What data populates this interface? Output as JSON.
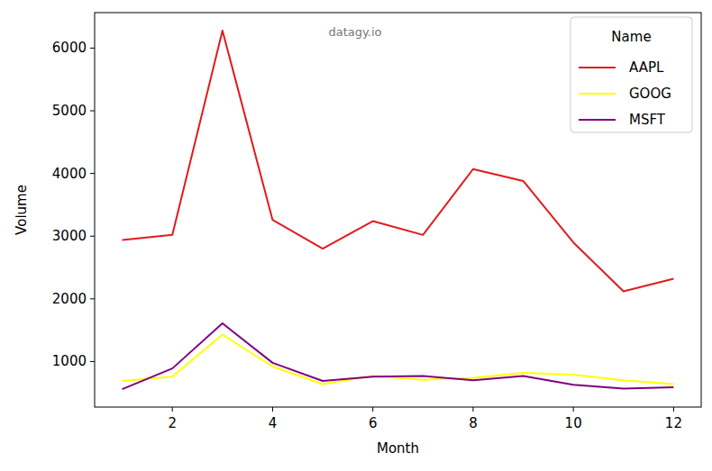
{
  "chart_data": {
    "type": "line",
    "x_label": "Month",
    "y_label": "Volume",
    "annotations": [
      "datagy.io"
    ],
    "legend_title": "Name",
    "legend": "upper right",
    "grid": false,
    "x": [
      1,
      2,
      3,
      4,
      5,
      6,
      7,
      8,
      9,
      10,
      11,
      12
    ],
    "series": [
      {
        "name": "AAPL",
        "color": "#e31a1c",
        "values": [
          2940,
          3020,
          6280,
          3260,
          2800,
          3240,
          3020,
          4070,
          3880,
          2900,
          2120,
          2320
        ]
      },
      {
        "name": "GOOG",
        "color": "#ffff00",
        "values": [
          690,
          760,
          1430,
          920,
          640,
          770,
          710,
          740,
          820,
          790,
          700,
          640
        ]
      },
      {
        "name": "MSFT",
        "color": "#800080",
        "values": [
          560,
          890,
          1610,
          980,
          690,
          760,
          770,
          700,
          770,
          630,
          570,
          590
        ]
      }
    ],
    "xlim": [
      0.45,
      12.55
    ],
    "xticks": [
      2,
      4,
      6,
      8,
      10,
      12
    ],
    "ylim": [
      274,
      6566
    ],
    "yticks": [
      1000,
      2000,
      3000,
      4000,
      5000,
      6000
    ]
  }
}
